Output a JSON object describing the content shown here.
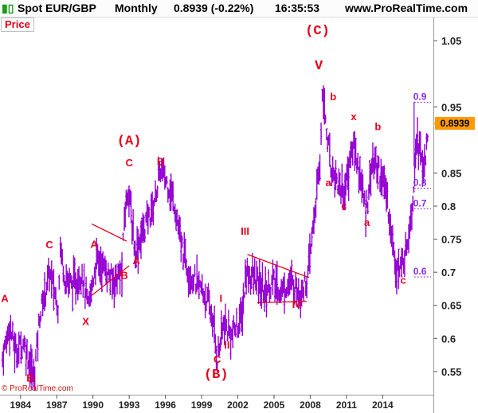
{
  "header": {
    "instrument": "Spot EUR/GBP",
    "period": "Monthly",
    "price_change": "0.8939 (-0.22%)",
    "time": "16:35:53",
    "site": "www.ProRealTime.com"
  },
  "price_tag": "Price",
  "copyright": "© ProRealTime.com",
  "current_price": "0.8939",
  "colors": {
    "bars": "#9400d3",
    "labels": "#e8001c",
    "fib": "#8a2be2",
    "badge": "#ff9a00"
  },
  "chart_data": {
    "type": "ohlc-bar",
    "xlim": [
      1982.3,
      2018.2
    ],
    "ylim": [
      0.515,
      1.085
    ],
    "x_ticks": [
      {
        "value": 1984,
        "label": "1984"
      },
      {
        "value": 1987,
        "label": "1987"
      },
      {
        "value": 1990,
        "label": "1990"
      },
      {
        "value": 1993,
        "label": "1993"
      },
      {
        "value": 1996,
        "label": "1996"
      },
      {
        "value": 1999,
        "label": "1999"
      },
      {
        "value": 2002,
        "label": "2002"
      },
      {
        "value": 2005,
        "label": "2005"
      },
      {
        "value": 2008,
        "label": "2008"
      },
      {
        "value": 2011,
        "label": "2011"
      },
      {
        "value": 2014,
        "label": "2014"
      }
    ],
    "y_ticks": [
      {
        "value": 1.05,
        "label": "1.05"
      },
      {
        "value": 0.95,
        "label": "0.95"
      },
      {
        "value": 0.85,
        "label": "0.85"
      },
      {
        "value": 0.8,
        "label": "0.8"
      },
      {
        "value": 0.75,
        "label": "0.75"
      },
      {
        "value": 0.7,
        "label": "0.7"
      },
      {
        "value": 0.65,
        "label": "0.65"
      },
      {
        "value": 0.6,
        "label": "0.6"
      },
      {
        "value": 0.55,
        "label": "0.55"
      }
    ],
    "price_path": [
      [
        1982.5,
        0.57
      ],
      [
        1983.1,
        0.62
      ],
      [
        1983.6,
        0.58
      ],
      [
        1984.3,
        0.595
      ],
      [
        1985.1,
        0.54
      ],
      [
        1985.6,
        0.635
      ],
      [
        1986.4,
        0.7
      ],
      [
        1987.1,
        0.65
      ],
      [
        1987.3,
        0.74
      ],
      [
        1987.7,
        0.69
      ],
      [
        1988.4,
        0.68
      ],
      [
        1989.1,
        0.7
      ],
      [
        1989.6,
        0.645
      ],
      [
        1990.3,
        0.72
      ],
      [
        1991.0,
        0.705
      ],
      [
        1991.6,
        0.685
      ],
      [
        1992.4,
        0.7
      ],
      [
        1992.6,
        0.78
      ],
      [
        1992.9,
        0.83
      ],
      [
        1993.5,
        0.73
      ],
      [
        1994.3,
        0.77
      ],
      [
        1995.0,
        0.8
      ],
      [
        1995.6,
        0.855
      ],
      [
        1996.3,
        0.83
      ],
      [
        1996.8,
        0.8
      ],
      [
        1997.3,
        0.74
      ],
      [
        1998.0,
        0.7
      ],
      [
        1998.7,
        0.68
      ],
      [
        1999.3,
        0.665
      ],
      [
        1999.9,
        0.63
      ],
      [
        2000.3,
        0.57
      ],
      [
        2000.8,
        0.62
      ],
      [
        2001.5,
        0.605
      ],
      [
        2002.3,
        0.63
      ],
      [
        2002.7,
        0.7
      ],
      [
        2003.4,
        0.69
      ],
      [
        2004.2,
        0.67
      ],
      [
        2004.9,
        0.685
      ],
      [
        2005.6,
        0.67
      ],
      [
        2006.3,
        0.685
      ],
      [
        2007.2,
        0.67
      ],
      [
        2007.8,
        0.69
      ],
      [
        2008.3,
        0.78
      ],
      [
        2008.8,
        0.86
      ],
      [
        2009.0,
        0.975
      ],
      [
        2009.7,
        0.86
      ],
      [
        2010.2,
        0.84
      ],
      [
        2010.8,
        0.82
      ],
      [
        2011.1,
        0.85
      ],
      [
        2011.6,
        0.895
      ],
      [
        2012.2,
        0.84
      ],
      [
        2012.6,
        0.79
      ],
      [
        2013.1,
        0.865
      ],
      [
        2013.6,
        0.86
      ],
      [
        2014.3,
        0.82
      ],
      [
        2015.0,
        0.72
      ],
      [
        2015.4,
        0.7
      ],
      [
        2015.9,
        0.73
      ],
      [
        2016.5,
        0.81
      ],
      [
        2016.8,
        0.91
      ],
      [
        2017.3,
        0.86
      ],
      [
        2017.8,
        0.894
      ]
    ],
    "wave_labels": [
      {
        "text": "A",
        "x": 1982.7,
        "y": 0.655
      },
      {
        "text": "B",
        "x": 1984.8,
        "y": 0.535
      },
      {
        "text": "C",
        "x": 1986.4,
        "y": 0.736
      },
      {
        "text": "A",
        "x": 1990.1,
        "y": 0.737
      },
      {
        "text": "X",
        "x": 1989.4,
        "y": 0.62
      },
      {
        "text": "B",
        "x": 1992.6,
        "y": 0.69
      },
      {
        "text": "A",
        "x": 1993.6,
        "y": 0.712
      },
      {
        "text": "C",
        "x": 1993.0,
        "y": 0.86
      },
      {
        "text": "B",
        "x": 1995.6,
        "y": 0.862
      },
      {
        "text": "(A)",
        "x": 1993.0,
        "y": 0.893
      },
      {
        "text": "III",
        "x": 2002.6,
        "y": 0.757
      },
      {
        "text": "I",
        "x": 2000.6,
        "y": 0.655
      },
      {
        "text": "II",
        "x": 2001.1,
        "y": 0.585
      },
      {
        "text": "C",
        "x": 2000.3,
        "y": 0.563
      },
      {
        "text": "(B)",
        "x": 2000.2,
        "y": 0.54
      },
      {
        "text": "IV",
        "x": 2006.9,
        "y": 0.646
      },
      {
        "text": "V",
        "x": 2008.7,
        "y": 1.007
      },
      {
        "text": "(C)",
        "x": 2008.6,
        "y": 1.06
      },
      {
        "text": "b",
        "x": 2009.9,
        "y": 0.96
      },
      {
        "text": "a",
        "x": 2009.5,
        "y": 0.83
      },
      {
        "text": "c",
        "x": 2010.8,
        "y": 0.795
      },
      {
        "text": "x",
        "x": 2011.6,
        "y": 0.93
      },
      {
        "text": "b",
        "x": 2013.6,
        "y": 0.915
      },
      {
        "text": "a",
        "x": 2012.7,
        "y": 0.77
      },
      {
        "text": "c",
        "x": 2015.7,
        "y": 0.683
      }
    ],
    "trend_lines": [
      {
        "x1": 1989.9,
        "y1": 0.773,
        "x2": 1992.8,
        "y2": 0.747
      },
      {
        "x1": 1989.9,
        "y1": 0.665,
        "x2": 1993.0,
        "y2": 0.71
      },
      {
        "x1": 2002.8,
        "y1": 0.727,
        "x2": 2007.9,
        "y2": 0.692
      },
      {
        "x1": 2003.6,
        "y1": 0.654,
        "x2": 2007.7,
        "y2": 0.656
      }
    ],
    "fib_levels": [
      {
        "label": "0.9",
        "y": 0.957
      },
      {
        "label": "0.8",
        "y": 0.827
      },
      {
        "label": "0.7",
        "y": 0.796
      },
      {
        "label": "0.6",
        "y": 0.693
      }
    ],
    "fib_line_x": [
      2016.6,
      2018.0
    ]
  }
}
